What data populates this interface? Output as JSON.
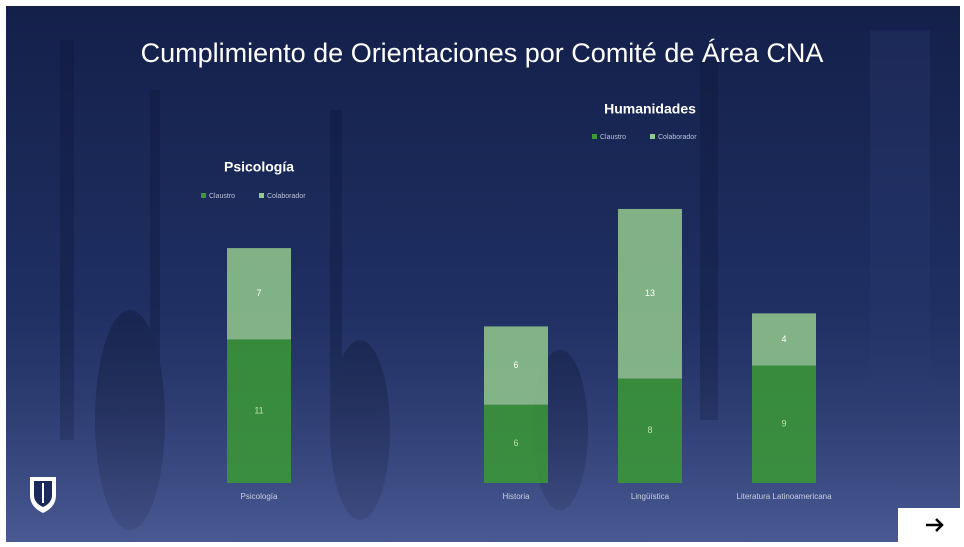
{
  "title": "Cumplimiento de Orientaciones por Comité de Área CNA",
  "chart_data": [
    {
      "type": "bar",
      "stacked": true,
      "title": "Psicología",
      "categories": [
        "Psicología"
      ],
      "series": [
        {
          "name": "Claustro",
          "color": "#3b9a35",
          "values": [
            11
          ]
        },
        {
          "name": "Colaborador",
          "color": "#93c98c",
          "values": [
            7
          ]
        }
      ]
    },
    {
      "type": "bar",
      "stacked": true,
      "title": "Humanidades",
      "categories": [
        "Historia",
        "Lingüística",
        "Literatura Latinoamericana"
      ],
      "series": [
        {
          "name": "Claustro",
          "color": "#3b9a35",
          "values": [
            6,
            8,
            9
          ]
        },
        {
          "name": "Colaborador",
          "color": "#93c98c",
          "values": [
            6,
            13,
            4
          ]
        }
      ]
    }
  ]
}
